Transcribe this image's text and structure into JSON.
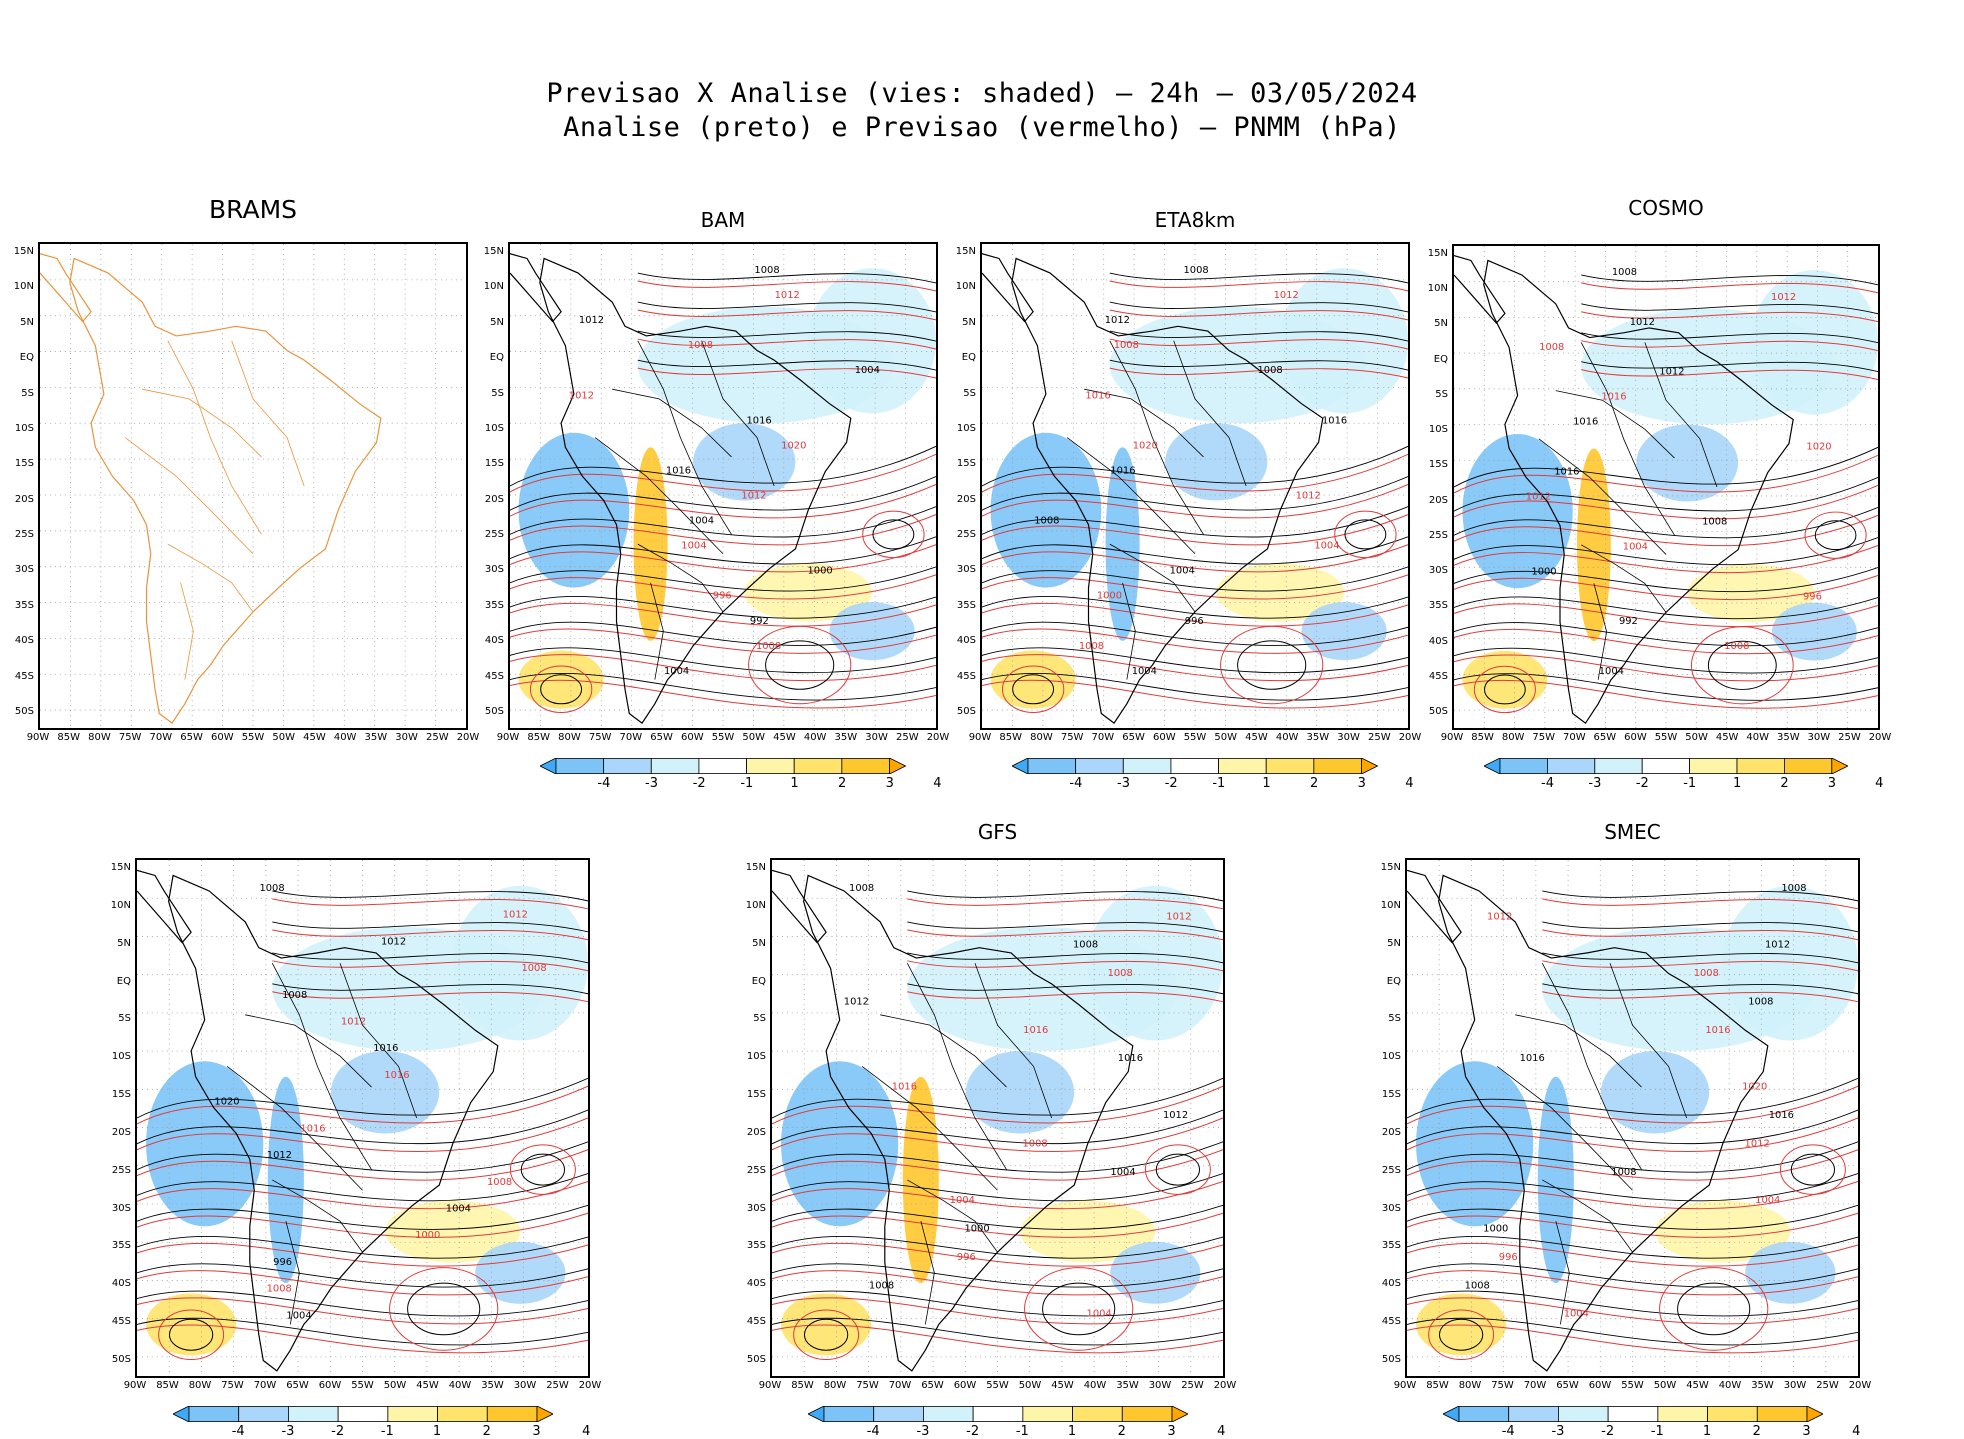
{
  "header": {
    "title_line1": "Previsao X Analise (vies: shaded) — 24h — 03/05/2024",
    "title_line2": "Analise (preto) e Previsao (vermelho) — PNMM (hPa)"
  },
  "panels": [
    {
      "name": "BRAMS",
      "lat_labels": [
        "15N",
        "10N",
        "5N",
        "EQ",
        "5S",
        "10S",
        "15S",
        "20S",
        "25S",
        "30S",
        "35S",
        "40S",
        "45S",
        "50S"
      ],
      "lon_labels": [
        "90W",
        "85W",
        "80W",
        "75W",
        "70W",
        "65W",
        "60W",
        "55W",
        "50W",
        "45W",
        "40W",
        "35W",
        "30W",
        "25W",
        "20W"
      ],
      "isobars": []
    },
    {
      "name": "BAM",
      "lat_labels": [
        "15N",
        "10N",
        "5N",
        "EQ",
        "5S",
        "10S",
        "15S",
        "20S",
        "25S",
        "30S",
        "35S",
        "40S",
        "45S",
        "50S"
      ],
      "lon_labels": [
        "90W",
        "85W",
        "80W",
        "75W",
        "70W",
        "65W",
        "60W",
        "55W",
        "50W",
        "45W",
        "40W",
        "35W",
        "30W",
        "25W",
        "20W"
      ],
      "isobars": [
        "1008",
        "1012",
        "1012",
        "1008",
        "1004",
        "1012",
        "1016",
        "1020",
        "1016",
        "1012",
        "1004",
        "1004",
        "1000",
        "996",
        "992",
        "1008",
        "1004"
      ]
    },
    {
      "name": "ETA8km",
      "lat_labels": [
        "15N",
        "10N",
        "5N",
        "EQ",
        "5S",
        "10S",
        "15S",
        "20S",
        "25S",
        "30S",
        "35S",
        "40S",
        "45S",
        "50S"
      ],
      "lon_labels": [
        "90W",
        "85W",
        "80W",
        "75W",
        "70W",
        "65W",
        "60W",
        "55W",
        "50W",
        "45W",
        "40W",
        "35W",
        "30W",
        "25W",
        "20W"
      ],
      "isobars": [
        "1008",
        "1012",
        "1012",
        "1008",
        "1008",
        "1016",
        "1016",
        "1020",
        "1016",
        "1012",
        "1008",
        "1004",
        "1004",
        "1000",
        "996",
        "1008",
        "1004"
      ]
    },
    {
      "name": "COSMO",
      "lat_labels": [
        "15N",
        "10N",
        "5N",
        "EQ",
        "5S",
        "10S",
        "15S",
        "20S",
        "25S",
        "30S",
        "35S",
        "40S",
        "45S",
        "50S"
      ],
      "lon_labels": [
        "90W",
        "85W",
        "80W",
        "75W",
        "70W",
        "65W",
        "60W",
        "55W",
        "50W",
        "45W",
        "40W",
        "35W",
        "30W",
        "25W",
        "20W"
      ],
      "isobars": [
        "1008",
        "1012",
        "1012",
        "1008",
        "1012",
        "1016",
        "1016",
        "1020",
        "1016",
        "1012",
        "1008",
        "1004",
        "1000",
        "996",
        "992",
        "1008",
        "1004"
      ]
    },
    {
      "name": "",
      "lat_labels": [
        "15N",
        "10N",
        "5N",
        "EQ",
        "5S",
        "10S",
        "15S",
        "20S",
        "25S",
        "30S",
        "35S",
        "40S",
        "45S",
        "50S"
      ],
      "lon_labels": [
        "90W",
        "85W",
        "80W",
        "75W",
        "70W",
        "65W",
        "60W",
        "55W",
        "50W",
        "45W",
        "40W",
        "35W",
        "30W",
        "25W",
        "20W"
      ],
      "isobars": [
        "1008",
        "1012",
        "1012",
        "1008",
        "1008",
        "1012",
        "1016",
        "1016",
        "1020",
        "1016",
        "1012",
        "1008",
        "1004",
        "1000",
        "996",
        "1008",
        "1004"
      ]
    },
    {
      "name": "GFS",
      "lat_labels": [
        "15N",
        "10N",
        "5N",
        "EQ",
        "5S",
        "10S",
        "15S",
        "20S",
        "25S",
        "30S",
        "35S",
        "40S",
        "45S",
        "50S"
      ],
      "lon_labels": [
        "90W",
        "85W",
        "80W",
        "75W",
        "70W",
        "65W",
        "60W",
        "55W",
        "50W",
        "45W",
        "40W",
        "35W",
        "30W",
        "25W",
        "20W"
      ],
      "isobars": [
        "1008",
        "1012",
        "1008",
        "1008",
        "1012",
        "1016",
        "1016",
        "1016",
        "1012",
        "1008",
        "1004",
        "1004",
        "1000",
        "996",
        "1008",
        "1004"
      ]
    },
    {
      "name": "SMEC",
      "lat_labels": [
        "15N",
        "10N",
        "5N",
        "EQ",
        "5S",
        "10S",
        "15S",
        "20S",
        "25S",
        "30S",
        "35S",
        "40S",
        "45S",
        "50S"
      ],
      "lon_labels": [
        "90W",
        "85W",
        "80W",
        "75W",
        "70W",
        "65W",
        "60W",
        "55W",
        "50W",
        "45W",
        "40W",
        "35W",
        "30W",
        "25W",
        "20W"
      ],
      "isobars": [
        "1008",
        "1012",
        "1012",
        "1008",
        "1008",
        "1016",
        "1016",
        "1020",
        "1016",
        "1012",
        "1008",
        "1004",
        "1000",
        "996",
        "1008",
        "1004"
      ]
    }
  ],
  "colorbar": {
    "labels": [
      "-4",
      "-3",
      "-2",
      "-1",
      "1",
      "2",
      "3",
      "4"
    ],
    "colors": [
      "#3fa9f5",
      "#7cc4f7",
      "#a9d6fa",
      "#d2f2fb",
      "#ffffff",
      "#fff5a8",
      "#ffe36a",
      "#ffc72e",
      "#ffa500"
    ]
  },
  "colors": {
    "analysis": "#000000",
    "forecast": "#e03a3a",
    "coast": "#e8943a"
  }
}
